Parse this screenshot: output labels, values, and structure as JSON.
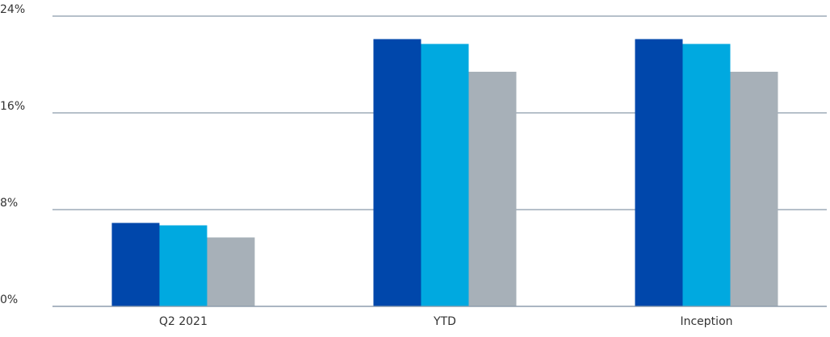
{
  "chart_data": {
    "type": "bar",
    "title": "",
    "xlabel": "",
    "ylabel": "",
    "categories": [
      "Q2 2021",
      "YTD",
      "Inception"
    ],
    "series": [
      {
        "color": "#0047ab",
        "values": [
          6.9,
          22.1,
          22.1
        ]
      },
      {
        "color": "#00a9e0",
        "values": [
          6.7,
          21.7,
          21.7
        ]
      },
      {
        "color": "#a7b0b8",
        "values": [
          5.7,
          19.4,
          19.4
        ]
      }
    ],
    "ylim": [
      0,
      24
    ],
    "yticks": [
      {
        "value": 0,
        "label": "0%"
      },
      {
        "value": 8,
        "label": "8%"
      },
      {
        "value": 16,
        "label": "16%"
      },
      {
        "value": 24,
        "label": "24%"
      }
    ],
    "grid": true,
    "legend": "none"
  }
}
